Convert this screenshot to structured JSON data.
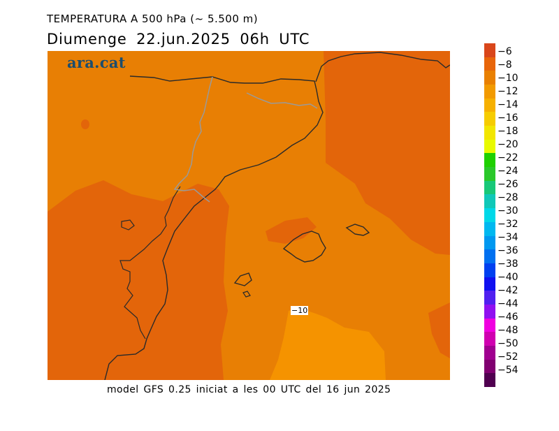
{
  "title": "TEMPERATURA A 500 hPa (~ 5.500 m)",
  "subtitle": "Diumenge  22.jun.2025 06h UTC",
  "brand": "ara.cat",
  "contour_label": "−10",
  "footer": "model GFS 0.25 iniciat a les 00 UTC del 16 jun 2025",
  "legend": {
    "labels": [
      "−6",
      "−8",
      "−10",
      "−12",
      "−14",
      "−16",
      "−18",
      "−20",
      "−22",
      "−24",
      "−26",
      "−28",
      "−30",
      "−32",
      "−34",
      "−36",
      "−38",
      "−40",
      "−42",
      "−44",
      "−46",
      "−48",
      "−50",
      "−52",
      "−54"
    ],
    "colors": [
      "#d9461a",
      "#e8650a",
      "#e98001",
      "#f29a00",
      "#f6b000",
      "#f6cc00",
      "#f2e600",
      "#e8fa00",
      "#1ed000",
      "#2ac82a",
      "#18c878",
      "#10c8b8",
      "#00d8e8",
      "#00b8f0",
      "#0098f0",
      "#0070f0",
      "#0040f0",
      "#1010f0",
      "#5020f0",
      "#9010f0",
      "#f000e0",
      "#d000b0",
      "#a00090",
      "#800070",
      "#500050"
    ]
  },
  "map_colors": {
    "background": "#e87f04",
    "warm_zone": "#e3650a",
    "cool_zone": "#f59300",
    "coastline": "#2a2a2a",
    "border": "#9a9a9a"
  }
}
